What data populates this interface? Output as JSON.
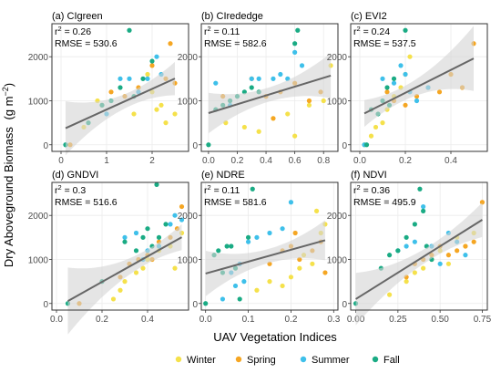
{
  "figure": {
    "ylabel_main": "Dry Aboveground Biomass",
    "ylabel_unit_prefix": "(g m",
    "ylabel_unit_sup": "−2",
    "ylabel_unit_suffix": ")",
    "xlabel": "UAV Vegetation Indices",
    "legend": [
      "Winter",
      "Spring",
      "Summer",
      "Fall"
    ],
    "colors": {
      "Winter": "#f5e14b",
      "Spring": "#f5a623",
      "Summer": "#3ec0ea",
      "Fall": "#1aab84",
      "trend": "#666666",
      "ribbon": "#d3d3d3",
      "panel_border": "#333333",
      "grid": "#ebebeb"
    }
  },
  "chart_data": [
    {
      "type": "scatter",
      "title": "(a) CIgreen",
      "r2_prefix": "r",
      "r2_sup": "2",
      "r2_value": " = 0.26",
      "rmse": "RMSE = 530.6",
      "xlim": [
        -0.2,
        2.8
      ],
      "ylim": [
        -150,
        2750
      ],
      "xticks": [
        0,
        1,
        2
      ],
      "yticks": [
        0,
        1000,
        2000
      ],
      "fit": {
        "intercept": 330,
        "slope": 470
      },
      "points": {
        "Winter": [
          [
            0.5,
            400
          ],
          [
            0.8,
            1000
          ],
          [
            1.6,
            700
          ],
          [
            2.0,
            1200
          ],
          [
            2.2,
            900
          ],
          [
            2.3,
            500
          ],
          [
            2.5,
            700
          ],
          [
            2.1,
            800
          ],
          [
            1.9,
            1600
          ]
        ],
        "Spring": [
          [
            0.2,
            0
          ],
          [
            0.9,
            900
          ],
          [
            1.1,
            1200
          ],
          [
            1.4,
            1100
          ],
          [
            1.7,
            1300
          ],
          [
            2.0,
            1800
          ],
          [
            2.3,
            1500
          ],
          [
            2.5,
            1400
          ],
          [
            2.4,
            2300
          ]
        ],
        "Summer": [
          [
            0.1,
            0
          ],
          [
            1.0,
            700
          ],
          [
            1.3,
            1500
          ],
          [
            1.5,
            1500
          ],
          [
            1.7,
            1200
          ],
          [
            1.9,
            1500
          ],
          [
            2.1,
            2000
          ],
          [
            2.2,
            1600
          ]
        ],
        "Fall": [
          [
            0.1,
            0
          ],
          [
            0.6,
            500
          ],
          [
            0.9,
            900
          ],
          [
            1.1,
            1000
          ],
          [
            1.3,
            1300
          ],
          [
            1.5,
            2600
          ],
          [
            1.6,
            1100
          ],
          [
            1.8,
            1500
          ],
          [
            2.0,
            1900
          ]
        ]
      }
    },
    {
      "type": "scatter",
      "title": "(b) CIrededge",
      "r2_prefix": "r",
      "r2_sup": "2",
      "r2_value": " = 0.11",
      "rmse": "RMSE = 582.6",
      "xlim": [
        -0.05,
        0.9
      ],
      "ylim": [
        -150,
        2750
      ],
      "xticks": [
        0,
        0.2,
        0.4,
        0.6,
        0.8
      ],
      "xticklabels": [
        "0.0",
        "0.2",
        "0.4",
        "0.6",
        "0.8"
      ],
      "yticks": [
        0,
        1000,
        2000
      ],
      "fit": {
        "intercept": 720,
        "slope": 1000
      },
      "points": {
        "Winter": [
          [
            0.12,
            500
          ],
          [
            0.25,
            400
          ],
          [
            0.35,
            300
          ],
          [
            0.45,
            600
          ],
          [
            0.55,
            700
          ],
          [
            0.6,
            200
          ],
          [
            0.7,
            900
          ],
          [
            0.8,
            1000
          ],
          [
            0.85,
            1800
          ]
        ],
        "Spring": [
          [
            0.1,
            1100
          ],
          [
            0.3,
            1500
          ],
          [
            0.4,
            1100
          ],
          [
            0.5,
            1200
          ],
          [
            0.6,
            1400
          ],
          [
            0.7,
            1000
          ],
          [
            0.78,
            1200
          ],
          [
            0.45,
            600
          ]
        ],
        "Summer": [
          [
            0.05,
            1400
          ],
          [
            0.15,
            900
          ],
          [
            0.3,
            1500
          ],
          [
            0.35,
            1500
          ],
          [
            0.45,
            1500
          ],
          [
            0.5,
            1600
          ],
          [
            0.55,
            1500
          ],
          [
            0.6,
            2100
          ],
          [
            0.65,
            1800
          ]
        ],
        "Fall": [
          [
            0.0,
            0
          ],
          [
            0.05,
            800
          ],
          [
            0.1,
            900
          ],
          [
            0.15,
            1000
          ],
          [
            0.2,
            1100
          ],
          [
            0.25,
            1200
          ],
          [
            0.3,
            1300
          ],
          [
            0.35,
            1200
          ],
          [
            0.6,
            2300
          ],
          [
            0.62,
            2600
          ]
        ]
      }
    },
    {
      "type": "scatter",
      "title": "(c) EVI2",
      "r2_prefix": "r",
      "r2_sup": "2",
      "r2_value": " = 0.24",
      "rmse": "RMSE = 537.5",
      "xlim": [
        -0.04,
        0.56
      ],
      "ylim": [
        -150,
        2750
      ],
      "xticks": [
        0,
        0.2,
        0.4
      ],
      "xticklabels": [
        "0.0",
        "0.2",
        "0.4"
      ],
      "yticks": [
        0,
        1000,
        2000
      ],
      "fit": {
        "intercept": 660,
        "slope": 2600
      },
      "points": {
        "Winter": [
          [
            0.02,
            0
          ],
          [
            0.05,
            200
          ],
          [
            0.07,
            400
          ],
          [
            0.1,
            500
          ],
          [
            0.12,
            800
          ],
          [
            0.15,
            1100
          ],
          [
            0.18,
            1300
          ],
          [
            0.2,
            1600
          ],
          [
            0.22,
            2000
          ]
        ],
        "Spring": [
          [
            0.12,
            1200
          ],
          [
            0.15,
            1000
          ],
          [
            0.2,
            900
          ],
          [
            0.25,
            1100
          ],
          [
            0.3,
            1300
          ],
          [
            0.35,
            1200
          ],
          [
            0.4,
            1600
          ],
          [
            0.45,
            1300
          ],
          [
            0.5,
            2300
          ]
        ],
        "Summer": [
          [
            0.02,
            0
          ],
          [
            0.1,
            1500
          ],
          [
            0.15,
            1400
          ],
          [
            0.18,
            1800
          ],
          [
            0.2,
            1600
          ],
          [
            0.22,
            1200
          ],
          [
            0.25,
            1000
          ],
          [
            0.3,
            1300
          ]
        ],
        "Fall": [
          [
            0.03,
            0
          ],
          [
            0.05,
            800
          ],
          [
            0.1,
            1000
          ],
          [
            0.12,
            1300
          ],
          [
            0.15,
            1500
          ],
          [
            0.2,
            2600
          ],
          [
            0.08,
            700
          ],
          [
            0.13,
            900
          ]
        ]
      }
    },
    {
      "type": "scatter",
      "title": "(d) GNDVI",
      "r2_prefix": "r",
      "r2_sup": "2",
      "r2_value": " = 0.3",
      "rmse": "RMSE = 516.6",
      "xlim": [
        -0.02,
        0.58
      ],
      "ylim": [
        -150,
        2750
      ],
      "xticks": [
        0,
        0.2,
        0.4
      ],
      "xticklabels": [
        "0.0",
        "0.2",
        "0.4"
      ],
      "yticks": [
        0,
        1000,
        2000
      ],
      "fit": {
        "intercept": -90,
        "slope": 2900
      },
      "points": {
        "Winter": [
          [
            0.25,
            100
          ],
          [
            0.28,
            300
          ],
          [
            0.3,
            500
          ],
          [
            0.35,
            700
          ],
          [
            0.38,
            800
          ],
          [
            0.4,
            1000
          ],
          [
            0.45,
            1200
          ],
          [
            0.5,
            1300
          ],
          [
            0.55,
            1600
          ],
          [
            0.52,
            800
          ]
        ],
        "Spring": [
          [
            0.1,
            0
          ],
          [
            0.28,
            600
          ],
          [
            0.32,
            900
          ],
          [
            0.36,
            1000
          ],
          [
            0.4,
            1100
          ],
          [
            0.42,
            1000
          ],
          [
            0.45,
            1400
          ],
          [
            0.5,
            1500
          ],
          [
            0.55,
            2200
          ],
          [
            0.53,
            1700
          ]
        ],
        "Summer": [
          [
            0.3,
            1500
          ],
          [
            0.35,
            1600
          ],
          [
            0.38,
            1000
          ],
          [
            0.4,
            1200
          ],
          [
            0.45,
            1300
          ],
          [
            0.5,
            1800
          ],
          [
            0.52,
            2000
          ],
          [
            0.55,
            1900
          ]
        ],
        "Fall": [
          [
            0.05,
            0
          ],
          [
            0.2,
            500
          ],
          [
            0.3,
            1400
          ],
          [
            0.35,
            1200
          ],
          [
            0.38,
            1500
          ],
          [
            0.4,
            1700
          ],
          [
            0.42,
            1300
          ],
          [
            0.45,
            1500
          ],
          [
            0.48,
            1800
          ],
          [
            0.44,
            2700
          ]
        ]
      }
    },
    {
      "type": "scatter",
      "title": "(e) NDRE",
      "r2_prefix": "r",
      "r2_sup": "2",
      "r2_value": " = 0.11",
      "rmse": "RMSE = 581.6",
      "xlim": [
        -0.01,
        0.31
      ],
      "ylim": [
        -150,
        2750
      ],
      "xticks": [
        0,
        0.1,
        0.2,
        0.3
      ],
      "xticklabels": [
        "0.0",
        "0.1",
        "0.2",
        "0.3"
      ],
      "yticks": [
        0,
        1000,
        2000
      ],
      "fit": {
        "intercept": 680,
        "slope": 2700
      },
      "points": {
        "Winter": [
          [
            0.12,
            300
          ],
          [
            0.15,
            500
          ],
          [
            0.18,
            400
          ],
          [
            0.2,
            600
          ],
          [
            0.22,
            800
          ],
          [
            0.25,
            900
          ],
          [
            0.27,
            1600
          ],
          [
            0.28,
            1800
          ],
          [
            0.26,
            2100
          ],
          [
            0.23,
            1100
          ]
        ],
        "Spring": [
          [
            0.15,
            900
          ],
          [
            0.18,
            1200
          ],
          [
            0.2,
            1300
          ],
          [
            0.22,
            1000
          ],
          [
            0.25,
            1200
          ],
          [
            0.27,
            1400
          ],
          [
            0.28,
            700
          ],
          [
            0.21,
            1600
          ]
        ],
        "Summer": [
          [
            0.04,
            100
          ],
          [
            0.06,
            700
          ],
          [
            0.07,
            400
          ],
          [
            0.08,
            900
          ],
          [
            0.1,
            1400
          ],
          [
            0.12,
            1500
          ],
          [
            0.15,
            1600
          ],
          [
            0.18,
            1700
          ],
          [
            0.2,
            2300
          ],
          [
            0.09,
            500
          ]
        ],
        "Fall": [
          [
            0.0,
            0
          ],
          [
            0.02,
            1100
          ],
          [
            0.03,
            1200
          ],
          [
            0.05,
            1300
          ],
          [
            0.06,
            1300
          ],
          [
            0.07,
            800
          ],
          [
            0.08,
            100
          ],
          [
            0.1,
            1500
          ],
          [
            0.11,
            2600
          ],
          [
            0.04,
            700
          ]
        ]
      }
    },
    {
      "type": "scatter",
      "title": "(f) NDVI",
      "r2_prefix": "r",
      "r2_sup": "2",
      "r2_value": " = 0.36",
      "rmse": "RMSE = 495.9",
      "xlim": [
        -0.03,
        0.78
      ],
      "ylim": [
        -150,
        2750
      ],
      "xticks": [
        0,
        0.25,
        0.5,
        0.75
      ],
      "xticklabels": [
        "0.00",
        "0.25",
        "0.50",
        "0.75"
      ],
      "yticks": [
        0,
        1000,
        2000
      ],
      "fit": {
        "intercept": 100,
        "slope": 2400
      },
      "points": {
        "Winter": [
          [
            0.2,
            200
          ],
          [
            0.3,
            500
          ],
          [
            0.35,
            700
          ],
          [
            0.4,
            800
          ],
          [
            0.45,
            1000
          ],
          [
            0.5,
            1200
          ],
          [
            0.55,
            900
          ],
          [
            0.6,
            1500
          ],
          [
            0.65,
            1300
          ],
          [
            0.7,
            1600
          ]
        ],
        "Spring": [
          [
            0.3,
            600
          ],
          [
            0.35,
            900
          ],
          [
            0.4,
            1000
          ],
          [
            0.45,
            1100
          ],
          [
            0.5,
            1300
          ],
          [
            0.55,
            1100
          ],
          [
            0.6,
            1200
          ],
          [
            0.65,
            1300
          ],
          [
            0.7,
            1400
          ],
          [
            0.75,
            2300
          ]
        ],
        "Summer": [
          [
            0.25,
            1200
          ],
          [
            0.3,
            1300
          ],
          [
            0.35,
            1400
          ],
          [
            0.4,
            2200
          ],
          [
            0.45,
            1300
          ],
          [
            0.5,
            900
          ],
          [
            0.55,
            1600
          ],
          [
            0.6,
            1400
          ],
          [
            0.65,
            1100
          ]
        ],
        "Fall": [
          [
            0.0,
            0
          ],
          [
            0.15,
            800
          ],
          [
            0.2,
            1100
          ],
          [
            0.25,
            1200
          ],
          [
            0.3,
            1500
          ],
          [
            0.35,
            1800
          ],
          [
            0.38,
            2600
          ],
          [
            0.4,
            2100
          ],
          [
            0.42,
            1300
          ],
          [
            0.45,
            1000
          ]
        ]
      }
    }
  ]
}
